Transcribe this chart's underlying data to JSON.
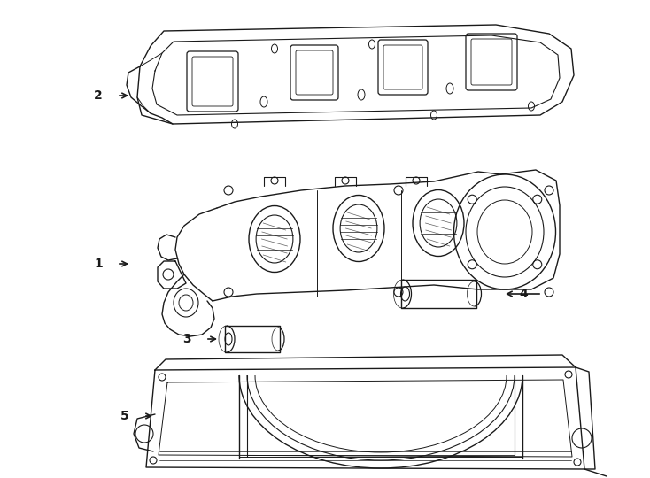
{
  "background_color": "#ffffff",
  "line_color": "#1a1a1a",
  "lw": 1.0,
  "fig_width": 7.34,
  "fig_height": 5.4,
  "dpi": 100
}
